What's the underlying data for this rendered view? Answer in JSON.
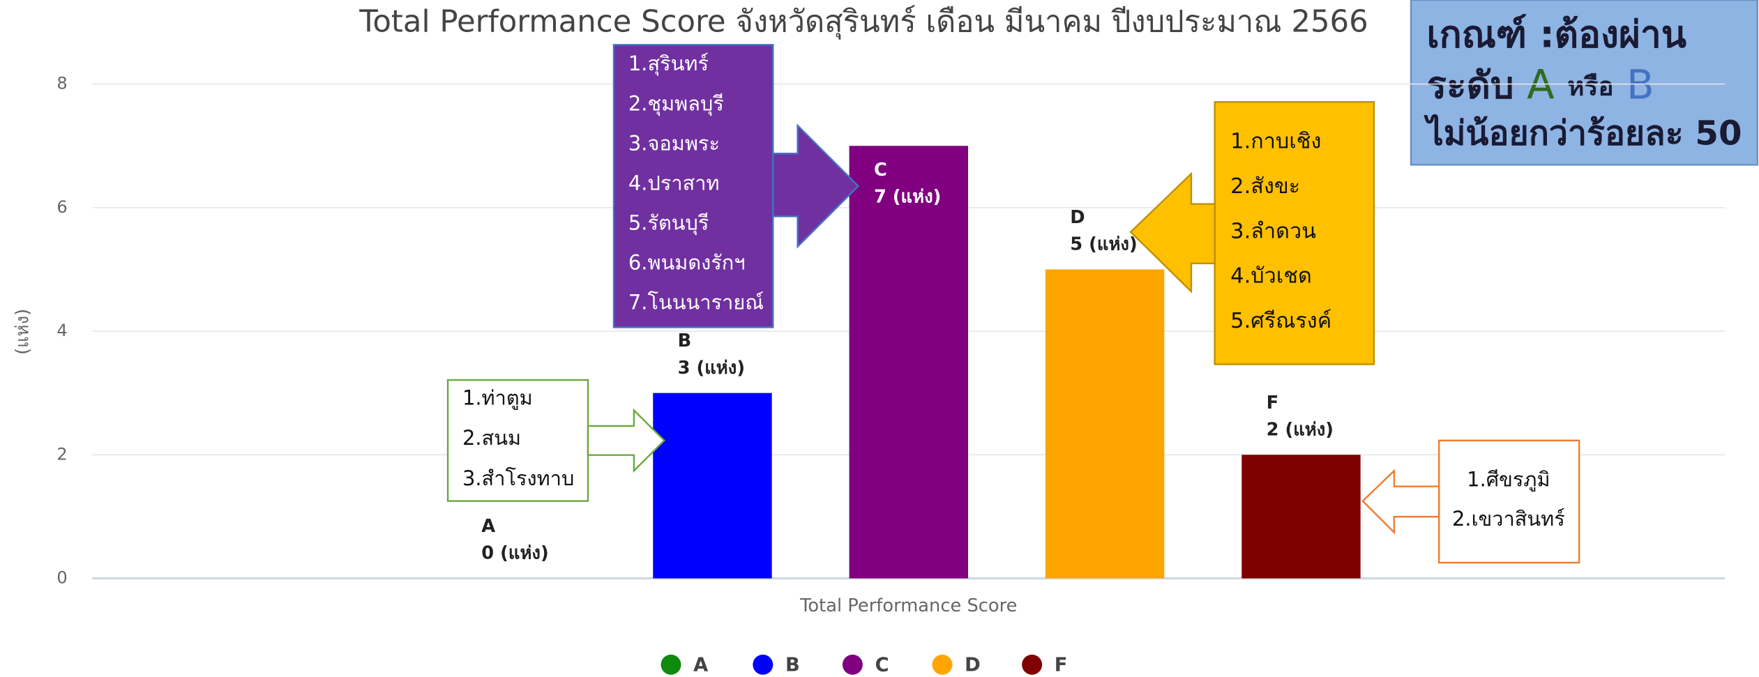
{
  "chart_data": {
    "type": "bar",
    "title": "Total Performance Score จังหวัดสุรินทร์ เดือน มีนาคม ปีงบประมาณ 2566",
    "ylabel": "(แห่ง)",
    "categories": [
      "Total Performance Score"
    ],
    "series": [
      {
        "name": "A",
        "color": "#0f8a0f",
        "values": [
          0
        ],
        "value_labels": [
          "0 (แห่ง)"
        ]
      },
      {
        "name": "B",
        "color": "#0000ff",
        "values": [
          3
        ],
        "value_labels": [
          "3 (แห่ง)"
        ]
      },
      {
        "name": "C",
        "color": "#800080",
        "values": [
          7
        ],
        "value_labels": [
          "7 (แห่ง)"
        ]
      },
      {
        "name": "D",
        "color": "#ffa500",
        "values": [
          5
        ],
        "value_labels": [
          "5 (แห่ง)"
        ]
      },
      {
        "name": "F",
        "color": "#800000",
        "values": [
          2
        ],
        "value_labels": [
          "2 (แห่ง)"
        ]
      }
    ],
    "ylim": [
      0,
      8
    ],
    "yticks": [
      0,
      2,
      4,
      6,
      8
    ],
    "grid": true,
    "legend": "bottom",
    "annotations": [
      [
        "1.ท่าตูม",
        "2.สนม",
        "3.สำโรงทาบ"
      ],
      [
        "1.สุรินทร์",
        "2.ชุมพลบุรี",
        "3.จอมพระ",
        "4.ปราสาท",
        "5.รัตนบุรี",
        "6.พนมดงรักฯ",
        "7.โนนนารายณ์"
      ],
      [
        "1.กาบเชิง",
        "2.สังขะ",
        "3.ลำดวน",
        "4.บัวเชด",
        "5.ศรีณรงค์"
      ],
      [
        "1.ศีขรภูมิ",
        "2.เขวาสินทร์"
      ]
    ],
    "criteria": {
      "line1": "เกณฑ์ :ต้องผ่าน",
      "line2": [
        "ระดับ",
        "A",
        "หรือ",
        "B"
      ],
      "line3": "ไม่น้อยกว่าร้อยละ 50"
    }
  }
}
